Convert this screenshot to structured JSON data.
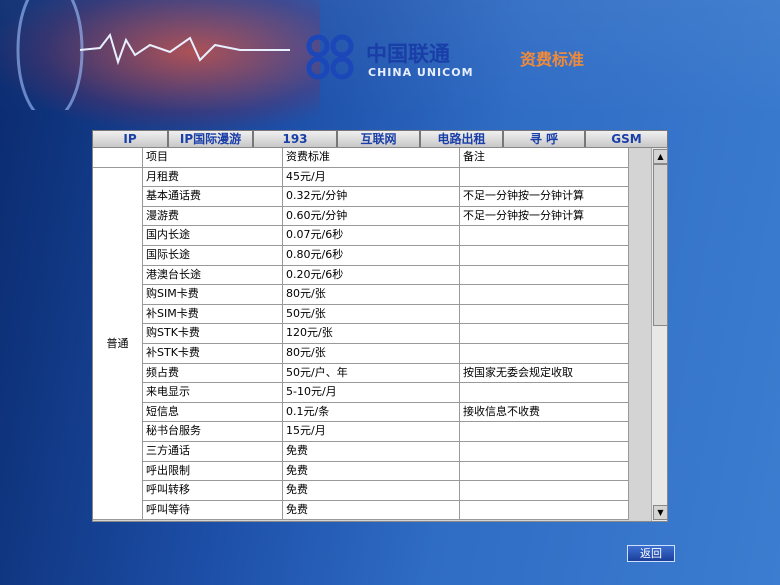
{
  "header": {
    "logo_cn": "中国联通",
    "logo_en": "CHINA UNICOM",
    "title": "资费标准"
  },
  "tabs": [
    "IP",
    "IP国际漫游",
    "193",
    "互联网",
    "电路出租",
    "寻  呼",
    "GSM"
  ],
  "table": {
    "columns": [
      "项目",
      "资费标准",
      "备注"
    ],
    "group": "普通",
    "rows": [
      {
        "item": "月租费",
        "fee": "45元/月"
      },
      {
        "item": "基本通话费",
        "fee": "0.32元/分钟",
        "note": "不足一分钟按一分钟计算"
      },
      {
        "item": "漫游费",
        "fee": "0.60元/分钟",
        "note": "不足一分钟按一分钟计算"
      },
      {
        "item": "国内长途",
        "fee": "0.07元/6秒"
      },
      {
        "item": "国际长途",
        "fee": "0.80元/6秒"
      },
      {
        "item": "港澳台长途",
        "fee": "0.20元/6秒"
      },
      {
        "item": "购SIM卡费",
        "fee": "80元/张"
      },
      {
        "item": "补SIM卡费",
        "fee": "50元/张"
      },
      {
        "item": "购STK卡费",
        "fee": "120元/张"
      },
      {
        "item": "补STK卡费",
        "fee": "80元/张"
      },
      {
        "item": "频占费",
        "fee": "50元/户、年",
        "note": "按国家无委会规定收取"
      },
      {
        "item": "来电显示",
        "fee": "5-10元/月"
      },
      {
        "item": "短信息",
        "fee": "0.1元/条",
        "note": "接收信息不收费"
      },
      {
        "item": "秘书台服务",
        "fee": "15元/月"
      },
      {
        "item": "三方通话",
        "fee": "免费"
      },
      {
        "item": "呼出限制",
        "fee": "免费"
      },
      {
        "item": "呼叫转移",
        "fee": "免费"
      },
      {
        "item": "呼叫等待",
        "fee": "免费"
      }
    ]
  },
  "back_button": "返回"
}
